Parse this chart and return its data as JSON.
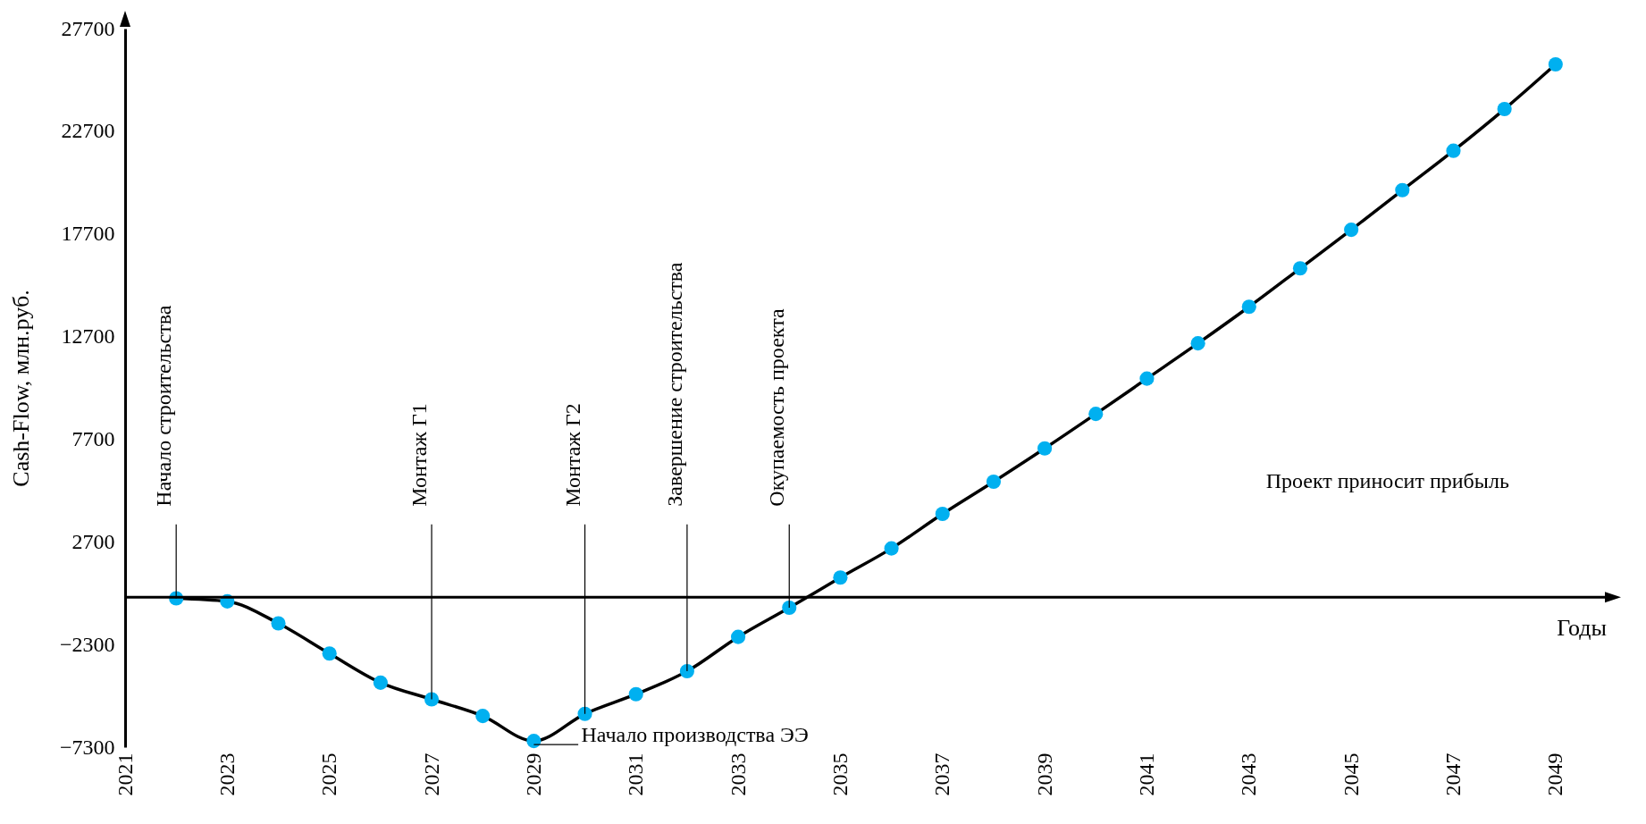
{
  "chart_data": {
    "type": "line",
    "xlabel": "Годы",
    "ylabel": "Cash-Flow, млн.руб.",
    "x": [
      2022,
      2023,
      2024,
      2025,
      2026,
      2027,
      2028,
      2029,
      2030,
      2031,
      2032,
      2033,
      2034,
      2035,
      2036,
      2037,
      2038,
      2039,
      2040,
      2041,
      2042,
      2043,
      2044,
      2045,
      2046,
      2047,
      2048,
      2049
    ],
    "series": [
      {
        "color": "#00b0f0",
        "values": [
          -50,
          -200,
          -1270,
          -2740,
          -4160,
          -4970,
          -5780,
          -7000,
          -5680,
          -4720,
          -3600,
          -1930,
          -510,
          960,
          2380,
          4060,
          5630,
          7250,
          8930,
          10650,
          12370,
          14150,
          16020,
          17900,
          19830,
          21750,
          23780,
          25960
        ]
      }
    ],
    "xlim": [
      2021,
      2050
    ],
    "xticks": [
      2021,
      2023,
      2025,
      2027,
      2029,
      2031,
      2033,
      2035,
      2037,
      2039,
      2041,
      2043,
      2045,
      2047,
      2049
    ],
    "ylim": [
      -7300,
      27700
    ],
    "yticks": [
      -7300,
      -2300,
      2700,
      7700,
      12700,
      17700,
      22700,
      27700
    ],
    "grid": false,
    "marker": "circle",
    "ref_lines": [
      {
        "axis": "y",
        "value": 0
      }
    ],
    "annotations": [
      {
        "text": "Начало строительства",
        "x": 2022,
        "y": -50
      },
      {
        "text": "Монтаж Г1",
        "x": 2027,
        "y": -4970
      },
      {
        "text": "Монтаж Г2",
        "x": 2030,
        "y": -5680
      },
      {
        "text": "Завершение строительства",
        "x": 2032,
        "y": -3600
      },
      {
        "text": "Окупаемость проекта",
        "x": 2034,
        "y": -510
      },
      {
        "text": "Начало производства ЭЭ",
        "x": 2029,
        "y": -7000
      },
      "Проект приносит прибыль"
    ]
  }
}
